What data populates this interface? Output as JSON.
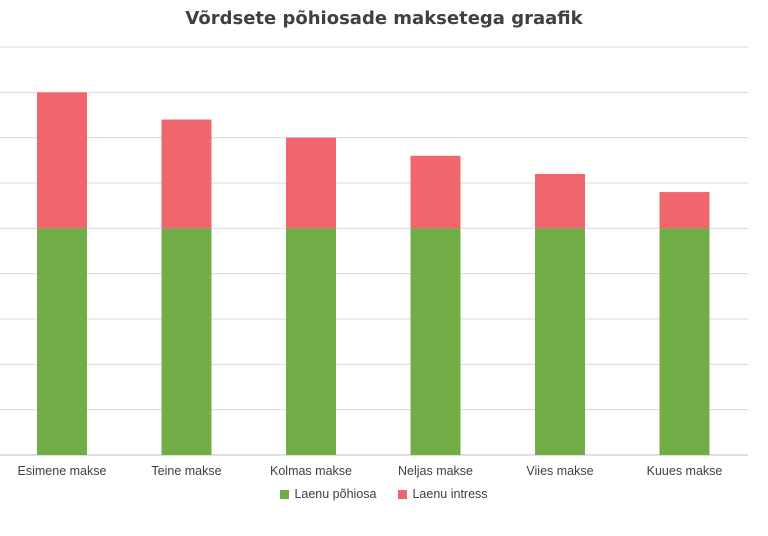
{
  "chart_data": {
    "type": "bar",
    "stacked": true,
    "title": "Võrdsete põhiosade maksetega graafik",
    "xlabel": "",
    "ylabel": "",
    "grid": true,
    "legend_position": "bottom",
    "categories": [
      "Esimene makse",
      "Teine makse",
      "Kolmas makse",
      "Neljas makse",
      "Viies makse",
      "Kuues makse"
    ],
    "series": [
      {
        "name": "Laenu põhiosa",
        "color": "#70AD47",
        "values": [
          5,
          5,
          5,
          5,
          5,
          5
        ]
      },
      {
        "name": "Laenu intress",
        "color": "#F0666D",
        "values": [
          3,
          2.4,
          2,
          1.6,
          1.2,
          0.8
        ]
      }
    ],
    "ylim": [
      0,
      9
    ]
  }
}
